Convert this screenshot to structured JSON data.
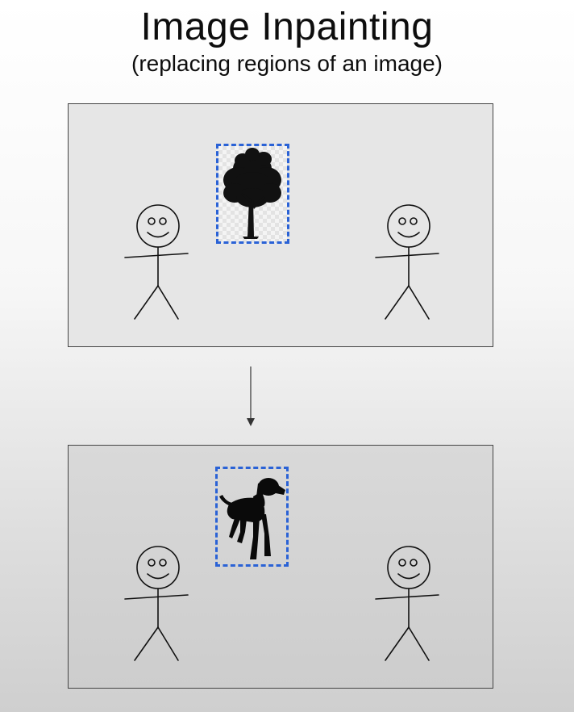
{
  "title": "Image Inpainting",
  "subtitle": "(replacing regions of an image)",
  "icons": {
    "stick_figure": "stick-figure-icon",
    "tree": "tree-icon",
    "dog": "dog-silhouette-icon",
    "arrow": "arrow-down-icon"
  },
  "colors": {
    "region_border": "#2a62d6",
    "panel_border": "#444444",
    "ink": "#111111"
  }
}
